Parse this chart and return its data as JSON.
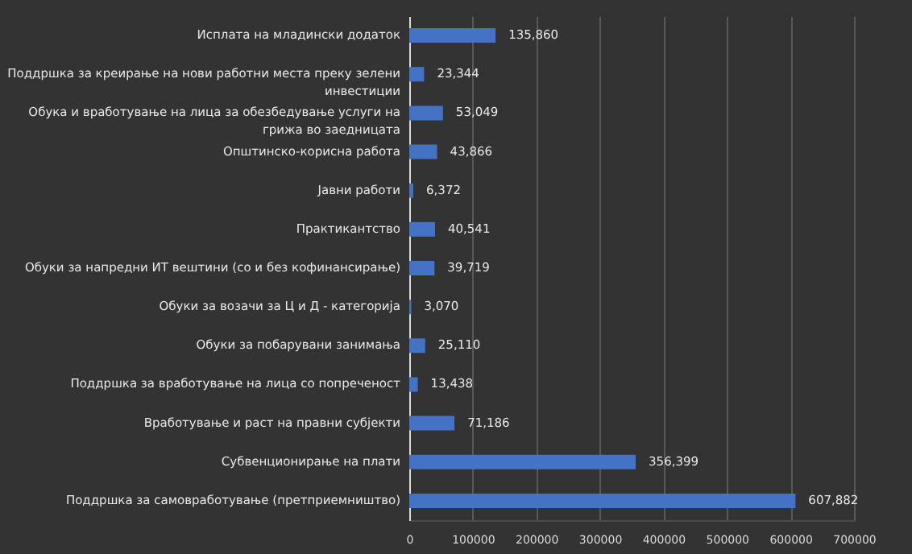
{
  "chart_data": {
    "type": "bar",
    "orientation": "horizontal",
    "categories": [
      "Исплата на младински додаток",
      "Поддршка за креирање на нови работни места преку зелени инвестиции",
      "Обука и вработување на лица за обезбедување услуги на грижа во заедницата",
      "Општинско-корисна работа",
      "Јавни работи",
      "Практикантство",
      "Обуки за напредни ИТ вештини (со и без кофинансирање)",
      "Обуки за возачи за Ц и Д - категорија",
      "Обуки за побарувани занимања",
      "Поддршка за вработување на лица со попреченост",
      "Вработување и раст на правни субјекти",
      "Субвенционирање на плати",
      "Поддршка за самовработување (претприемништво)"
    ],
    "values": [
      135860,
      23344,
      53049,
      43866,
      6372,
      40541,
      39719,
      3070,
      25110,
      13438,
      71186,
      356399,
      607882
    ],
    "color": "#4472c4",
    "xlim": [
      0,
      700000
    ],
    "xticks": [
      0,
      100000,
      200000,
      300000,
      400000,
      500000,
      600000,
      700000
    ],
    "value_labels": [
      "135,860",
      "23,344",
      "53,049",
      "43,866",
      "6,372",
      "40,541",
      "39,719",
      "3,070",
      "25,110",
      "13,438",
      "71,186",
      "356,399",
      "607,882"
    ],
    "grid": "x"
  }
}
